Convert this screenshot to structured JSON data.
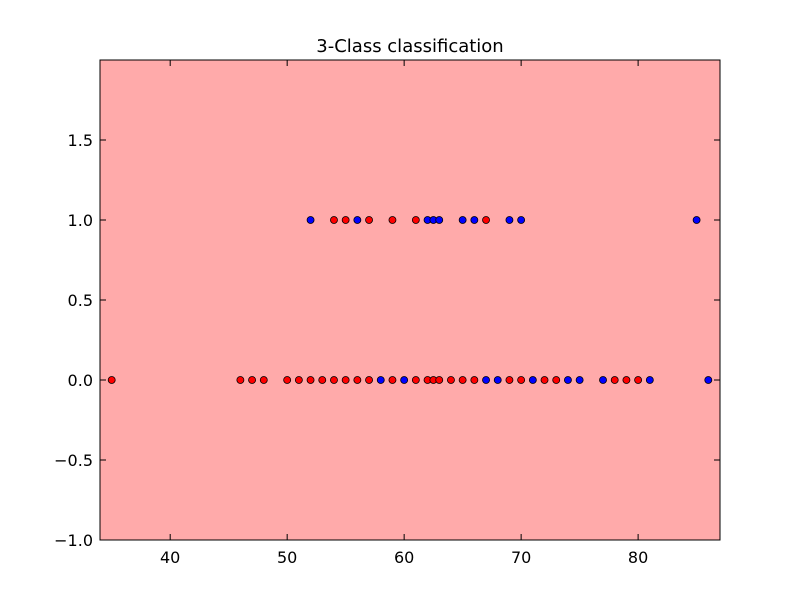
{
  "chart_data": {
    "type": "scatter",
    "title": "3-Class classification",
    "xlabel": "",
    "ylabel": "",
    "xlim": [
      34,
      87
    ],
    "ylim": [
      -1.0,
      2.0
    ],
    "x_ticks": [
      40,
      50,
      60,
      70,
      80
    ],
    "y_ticks": [
      -1.0,
      -0.5,
      0.0,
      0.5,
      1.0,
      1.5
    ],
    "y_tick_labels": [
      "−1.0",
      "−0.5",
      "0.0",
      "0.5",
      "1.0",
      "1.5"
    ],
    "background_color": "#FFAAAA",
    "grid": false,
    "legend": "none",
    "series": [
      {
        "color": "#FF0000",
        "points": [
          [
            35,
            0
          ],
          [
            46,
            0
          ],
          [
            47,
            0
          ],
          [
            48,
            0
          ],
          [
            50,
            0
          ],
          [
            51,
            0
          ],
          [
            52,
            0
          ],
          [
            53,
            0
          ],
          [
            54,
            0
          ],
          [
            55,
            0
          ],
          [
            56,
            0
          ],
          [
            57,
            0
          ],
          [
            59,
            0
          ],
          [
            61,
            0
          ],
          [
            62,
            0
          ],
          [
            62.5,
            0
          ],
          [
            63,
            0
          ],
          [
            64,
            0
          ],
          [
            65,
            0
          ],
          [
            66,
            0
          ],
          [
            69,
            0
          ],
          [
            70,
            0
          ],
          [
            72,
            0
          ],
          [
            73,
            0
          ],
          [
            78,
            0
          ],
          [
            79,
            0
          ],
          [
            80,
            0
          ],
          [
            54,
            1
          ],
          [
            55,
            1
          ],
          [
            57,
            1
          ],
          [
            59,
            1
          ],
          [
            61,
            1
          ],
          [
            67,
            1
          ]
        ]
      },
      {
        "color": "#0000FF",
        "points": [
          [
            58,
            0
          ],
          [
            60,
            0
          ],
          [
            67,
            0
          ],
          [
            68,
            0
          ],
          [
            71,
            0
          ],
          [
            74,
            0
          ],
          [
            75,
            0
          ],
          [
            77,
            0
          ],
          [
            81,
            0
          ],
          [
            86,
            0
          ],
          [
            52,
            1
          ],
          [
            56,
            1
          ],
          [
            62,
            1
          ],
          [
            62.5,
            1
          ],
          [
            63,
            1
          ],
          [
            65,
            1
          ],
          [
            66,
            1
          ],
          [
            69,
            1
          ],
          [
            70,
            1
          ],
          [
            85,
            1
          ]
        ]
      }
    ]
  }
}
